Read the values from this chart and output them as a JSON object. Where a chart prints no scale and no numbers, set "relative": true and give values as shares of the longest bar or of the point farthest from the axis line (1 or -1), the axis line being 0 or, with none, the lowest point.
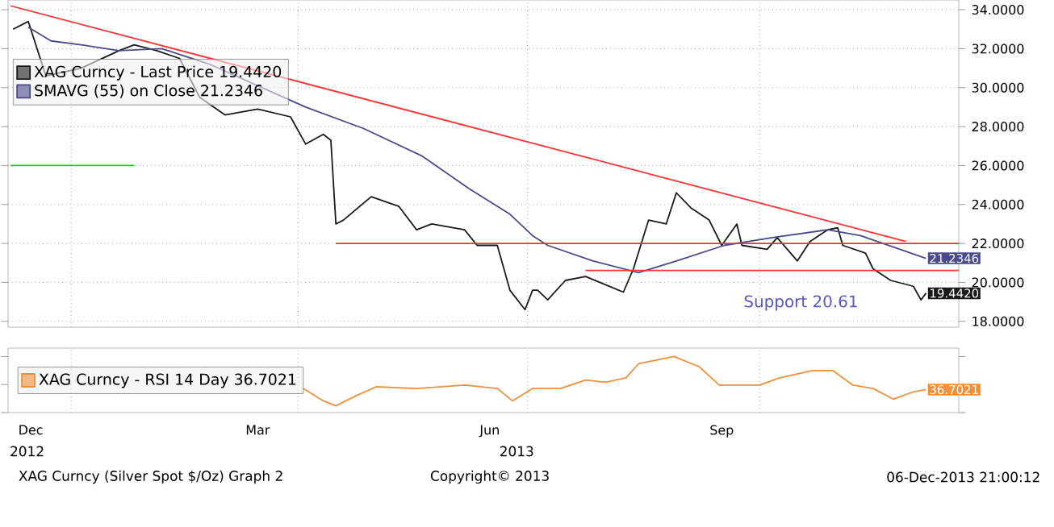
{
  "chart_data": [
    {
      "type": "line",
      "xlim": [
        "2012-12-07",
        "2013-12-19"
      ],
      "ylim": [
        17.7,
        34.5
      ],
      "xticks": [
        {
          "value": "2013-01-01",
          "label": null
        },
        {
          "value": "2013-04-01",
          "label": null
        },
        {
          "value": "2013-07-01",
          "label": null
        },
        {
          "value": "2013-10-01",
          "label": null
        }
      ],
      "yticks": [
        {
          "value": 18,
          "label": "18.0000"
        },
        {
          "value": 20,
          "label": "20.0000"
        },
        {
          "value": 22,
          "label": "22.0000"
        },
        {
          "value": 24,
          "label": "24.0000"
        },
        {
          "value": 26,
          "label": "26.0000"
        },
        {
          "value": 28,
          "label": "28.0000"
        },
        {
          "value": 30,
          "label": "30.0000"
        },
        {
          "value": 32,
          "label": "32.0000"
        },
        {
          "value": 34,
          "label": "34.0000"
        }
      ],
      "tick_labels": "y",
      "grid": true,
      "legend": "top left",
      "marker": "none",
      "line_style": "solid",
      "series": [
        {
          "name": "XAG Curncy - Last Price 19.4420",
          "color": "#1a1a1a",
          "x": [
            "2012-12-09",
            "2012-12-15",
            "2012-12-19",
            "2012-12-22",
            "2013-01-05",
            "2013-01-20",
            "2013-01-26",
            "2013-02-04",
            "2013-02-13",
            "2013-02-21",
            "2013-03-03",
            "2013-03-16",
            "2013-03-29",
            "2013-04-04",
            "2013-04-11",
            "2013-04-14",
            "2013-04-16",
            "2013-04-19",
            "2013-04-30",
            "2013-05-11",
            "2013-05-18",
            "2013-05-24",
            "2013-06-06",
            "2013-06-11",
            "2013-06-19",
            "2013-06-24",
            "2013-06-30",
            "2013-07-03",
            "2013-07-05",
            "2013-07-09",
            "2013-07-16",
            "2013-07-24",
            "2013-08-08",
            "2013-08-12",
            "2013-08-18",
            "2013-08-25",
            "2013-08-29",
            "2013-09-04",
            "2013-09-11",
            "2013-09-16",
            "2013-09-22",
            "2013-09-24",
            "2013-10-04",
            "2013-10-08",
            "2013-10-16",
            "2013-10-21",
            "2013-10-28",
            "2013-11-01",
            "2013-11-03",
            "2013-11-12",
            "2013-11-15",
            "2013-11-22",
            "2013-12-01",
            "2013-12-04",
            "2013-12-06"
          ],
          "values": [
            33.0,
            33.4,
            31.8,
            30.6,
            31.0,
            31.9,
            32.2,
            31.9,
            31.5,
            29.5,
            28.6,
            28.9,
            28.5,
            27.1,
            27.6,
            27.3,
            23.0,
            23.2,
            24.4,
            23.9,
            22.7,
            23.0,
            22.7,
            21.9,
            21.9,
            19.6,
            18.6,
            19.6,
            19.6,
            19.1,
            20.1,
            20.3,
            19.5,
            20.7,
            23.2,
            23.0,
            24.6,
            23.8,
            23.2,
            21.9,
            23.0,
            21.9,
            21.7,
            22.3,
            21.1,
            22.1,
            22.7,
            22.8,
            21.9,
            21.5,
            20.7,
            20.1,
            19.8,
            19.1,
            19.442
          ],
          "value_labels": [
            null,
            null,
            null,
            null,
            null,
            null,
            null,
            null,
            null,
            null,
            null,
            null,
            null,
            null,
            null,
            null,
            null,
            null,
            null,
            null,
            null,
            null,
            null,
            null,
            null,
            null,
            null,
            null,
            null,
            null,
            null,
            null,
            null,
            null,
            null,
            null,
            null,
            null,
            null,
            null,
            null,
            null,
            null,
            null,
            null,
            null,
            null,
            null,
            null,
            null,
            null,
            null,
            null,
            null,
            "19.4420"
          ]
        },
        {
          "name": "SMAVG (55) on Close 21.2346",
          "color": "#4a4a8c",
          "x": [
            "2012-12-15",
            "2012-12-24",
            "2013-01-05",
            "2013-01-20",
            "2013-02-06",
            "2013-02-25",
            "2013-03-16",
            "2013-04-04",
            "2013-04-27",
            "2013-05-20",
            "2013-06-08",
            "2013-06-24",
            "2013-07-03",
            "2013-07-09",
            "2013-07-27",
            "2013-08-14",
            "2013-08-29",
            "2013-09-17",
            "2013-10-06",
            "2013-10-28",
            "2013-11-10",
            "2013-12-06"
          ],
          "values": [
            33.1,
            32.4,
            32.2,
            31.9,
            32.0,
            31.2,
            30.1,
            29.0,
            27.9,
            26.5,
            24.8,
            23.5,
            22.4,
            21.9,
            21.1,
            20.5,
            21.1,
            21.9,
            22.3,
            22.7,
            22.4,
            21.2346
          ],
          "value_labels": [
            null,
            null,
            null,
            null,
            null,
            null,
            null,
            null,
            null,
            null,
            null,
            null,
            null,
            null,
            null,
            null,
            null,
            null,
            null,
            null,
            null,
            "21.2346"
          ]
        },
        {
          "color": "#ff3030",
          "x": [
            "2012-12-08",
            "2013-11-28"
          ],
          "values": [
            34.2,
            22.1
          ]
        },
        {
          "color": "#ff3030",
          "x": [
            "2013-04-16",
            "2013-12-19"
          ],
          "values": [
            22.0,
            22.0
          ]
        },
        {
          "color": "#ff3030",
          "x": [
            "2013-07-24",
            "2013-12-19"
          ],
          "values": [
            20.61,
            20.61
          ]
        },
        {
          "color": "#00e000",
          "x": [
            "2012-12-08",
            "2013-01-26"
          ],
          "values": [
            26.0,
            26.0
          ]
        }
      ],
      "annotations": [
        "Support 20.61"
      ]
    },
    {
      "type": "line",
      "relative": true,
      "xlim": [
        "2012-12-07",
        "2013-12-19"
      ],
      "xticks": [
        {
          "value": "2012-12-16",
          "label": "Dec"
        },
        {
          "value": "2013-03-16",
          "label": "Mar"
        },
        {
          "value": "2013-06-16",
          "label": "Jun"
        },
        {
          "value": "2013-09-16",
          "label": "Sep"
        },
        {
          "value": "2013-01-01",
          "label": null
        },
        {
          "value": "2013-04-01",
          "label": null
        },
        {
          "value": "2013-07-01",
          "label": null
        },
        {
          "value": "2013-10-01",
          "label": null
        }
      ],
      "grid": "x",
      "legend": "left",
      "marker": "none",
      "line_style": "solid",
      "series": [
        {
          "name": "XAG Curncy - RSI 14 Day 36.7021",
          "color": "#f0903c",
          "x": [
            "2013-04-03",
            "2013-04-11",
            "2013-04-16",
            "2013-04-24",
            "2013-05-02",
            "2013-05-18",
            "2013-06-06",
            "2013-06-19",
            "2013-06-25",
            "2013-07-03",
            "2013-07-14",
            "2013-07-24",
            "2013-08-01",
            "2013-08-09",
            "2013-08-14",
            "2013-08-28",
            "2013-09-07",
            "2013-09-15",
            "2013-10-01",
            "2013-10-09",
            "2013-10-22",
            "2013-10-30",
            "2013-11-07",
            "2013-11-15",
            "2013-11-23",
            "2013-12-01",
            "2013-12-06"
          ],
          "values": [
            0.43,
            0.21,
            0.12,
            0.3,
            0.46,
            0.43,
            0.49,
            0.43,
            0.21,
            0.43,
            0.43,
            0.58,
            0.54,
            0.62,
            0.87,
            1.0,
            0.82,
            0.49,
            0.49,
            0.62,
            0.75,
            0.75,
            0.49,
            0.43,
            0.24,
            0.37,
            0.41
          ]
        }
      ],
      "annotations": [
        {
          "text": "36.7021",
          "x": "2013-12-06",
          "y": 0.41
        },
        "2012",
        "2013",
        "XAG Curncy (Silver Spot  $/Oz) Graph 2",
        "Copyright© 2013",
        "06-Dec-2013 21:00:12"
      ]
    }
  ]
}
